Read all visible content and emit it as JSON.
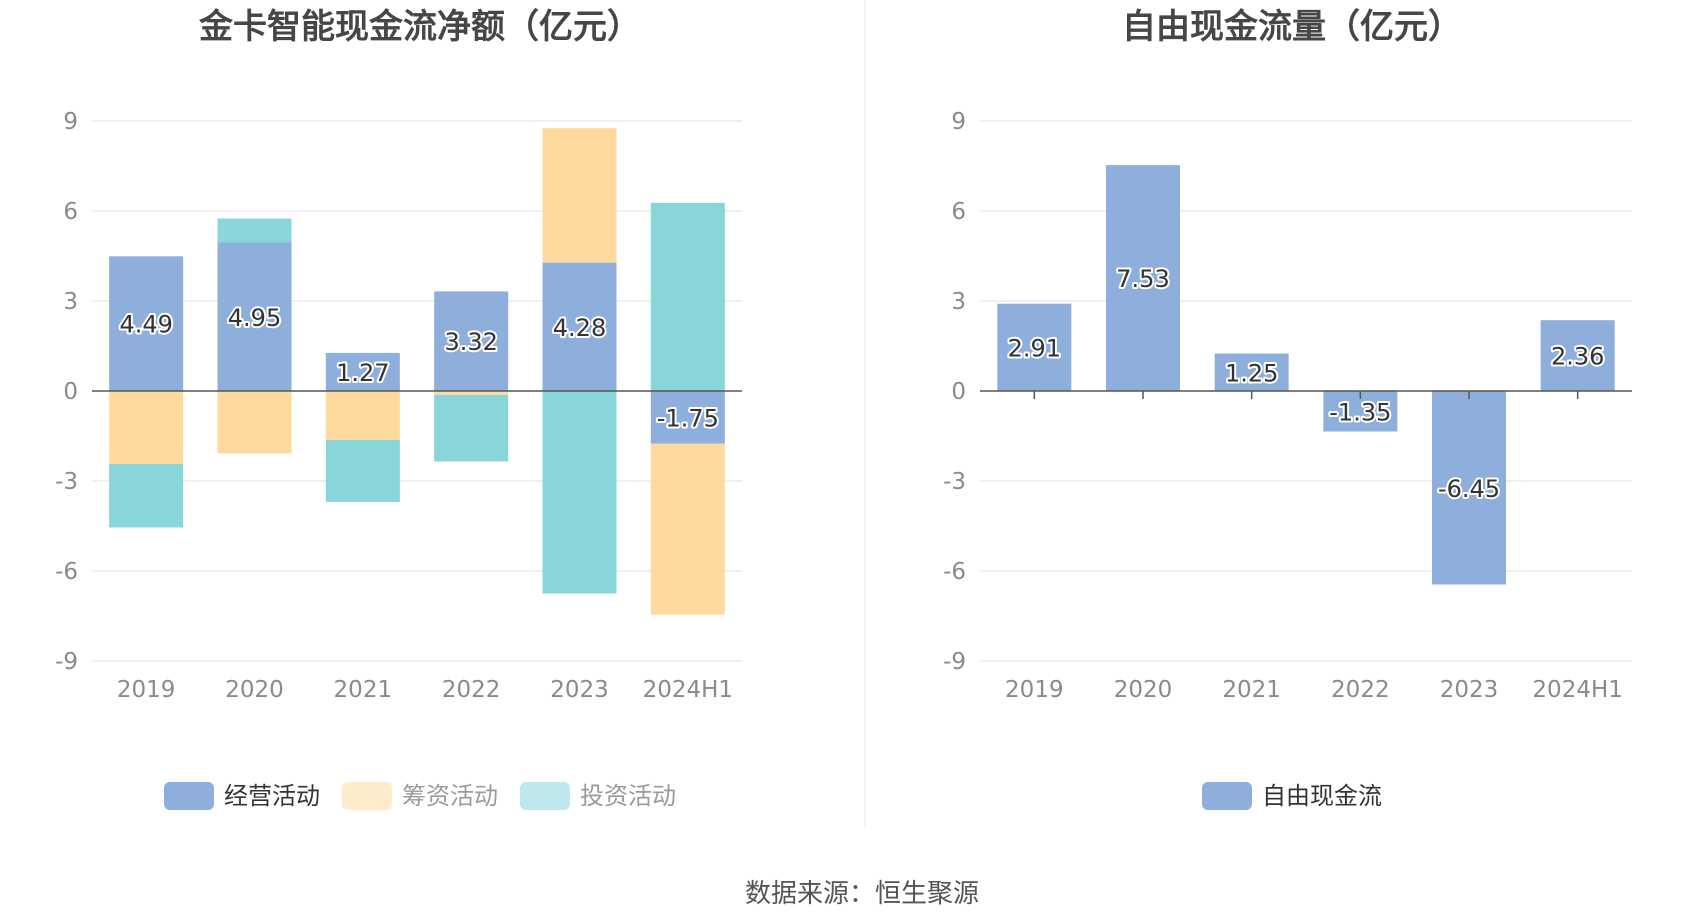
{
  "source_text": "数据来源：恒生聚源",
  "chart_data": [
    {
      "type": "bar",
      "stacked": true,
      "title": "金卡智能现金流净额（亿元）",
      "categories": [
        "2019",
        "2020",
        "2021",
        "2022",
        "2023",
        "2024H1"
      ],
      "ylim": [
        -9,
        9
      ],
      "yticks": [
        9,
        6,
        3,
        0,
        -3,
        -6,
        -9
      ],
      "grid": true,
      "legend_position": "bottom",
      "series": [
        {
          "name": "经营活动",
          "color": "#8eaedb",
          "values": [
            4.49,
            4.95,
            1.27,
            3.32,
            4.28,
            -1.75
          ],
          "labels": [
            "4.49",
            "4.95",
            "1.27",
            "3.32",
            "4.28",
            "-1.75"
          ]
        },
        {
          "name": "筹资活动",
          "color": "#ffd99e",
          "values": [
            -2.43,
            -2.08,
            -1.63,
            -0.13,
            4.48,
            -5.7
          ]
        },
        {
          "name": "投资活动",
          "color": "#88d6da",
          "values": [
            -2.12,
            0.8,
            -2.07,
            -2.22,
            -6.75,
            6.27
          ]
        }
      ]
    },
    {
      "type": "bar",
      "title": "自由现金流量（亿元）",
      "categories": [
        "2019",
        "2020",
        "2021",
        "2022",
        "2023",
        "2024H1"
      ],
      "ylim": [
        -9,
        9
      ],
      "yticks": [
        9,
        6,
        3,
        0,
        -3,
        -6,
        -9
      ],
      "grid": true,
      "legend_position": "bottom",
      "series": [
        {
          "name": "自由现金流",
          "color": "#8eaedb",
          "values": [
            2.91,
            7.53,
            1.25,
            -1.35,
            -6.45,
            2.36
          ],
          "labels": [
            "2.91",
            "7.53",
            "1.25",
            "-1.35",
            "-6.45",
            "2.36"
          ]
        }
      ]
    }
  ]
}
